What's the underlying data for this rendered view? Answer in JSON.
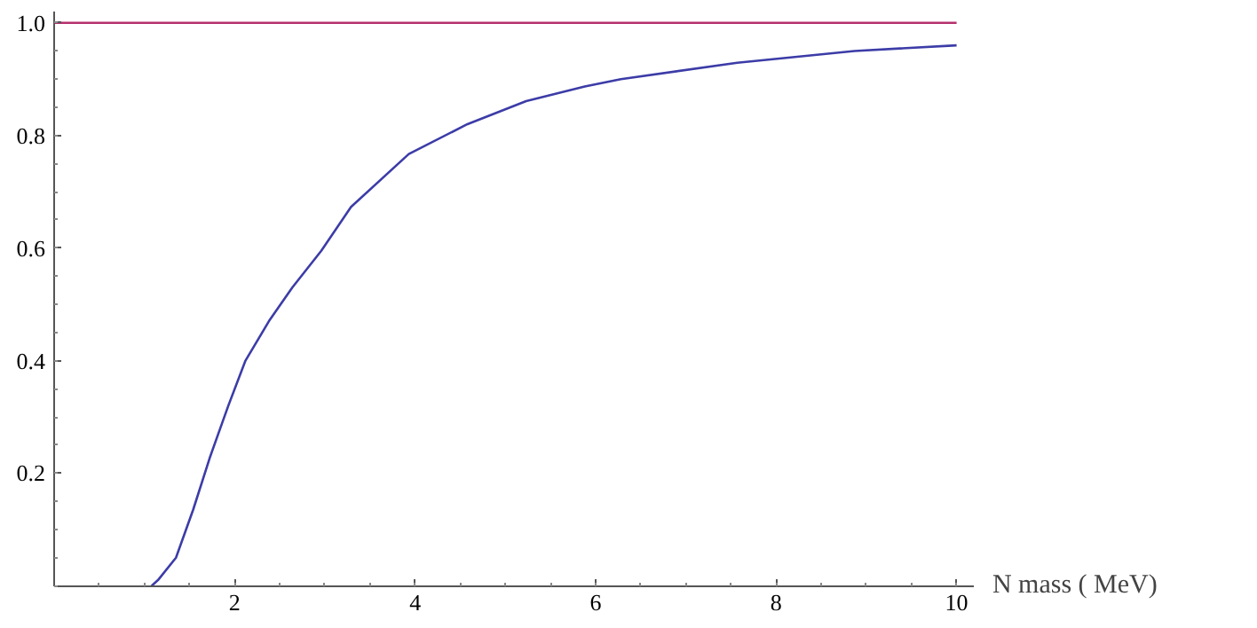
{
  "chart_data": {
    "type": "line",
    "xlabel": "N  mass ( MeV)",
    "xlim": [
      0,
      10.2
    ],
    "ylim": [
      0,
      1.02
    ],
    "xticks": [
      2,
      4,
      6,
      8,
      10
    ],
    "yticks": [
      0.2,
      0.4,
      0.6,
      0.8,
      {
        "value": 1,
        "label": "1.0"
      }
    ],
    "grid": false,
    "marker": "none",
    "line_style": "solid",
    "series": [
      {
        "color": "#b5306e",
        "x": [
          0,
          10
        ],
        "values": [
          1,
          1
        ]
      },
      {
        "color": "#3c3ca8",
        "x": [
          1.08,
          1.15,
          1.35,
          1.54,
          1.73,
          1.93,
          2.12,
          2.38,
          2.64,
          2.96,
          3.29,
          3.93,
          4.58,
          5.23,
          5.88,
          6.28,
          7.57,
          8.87,
          10.0
        ],
        "values": [
          0,
          0.01,
          0.05,
          0.135,
          0.23,
          0.32,
          0.4,
          0.47,
          0.53,
          0.595,
          0.673,
          0.767,
          0.82,
          0.861,
          0.887,
          0.9,
          0.929,
          0.95,
          0.96
        ]
      }
    ]
  }
}
